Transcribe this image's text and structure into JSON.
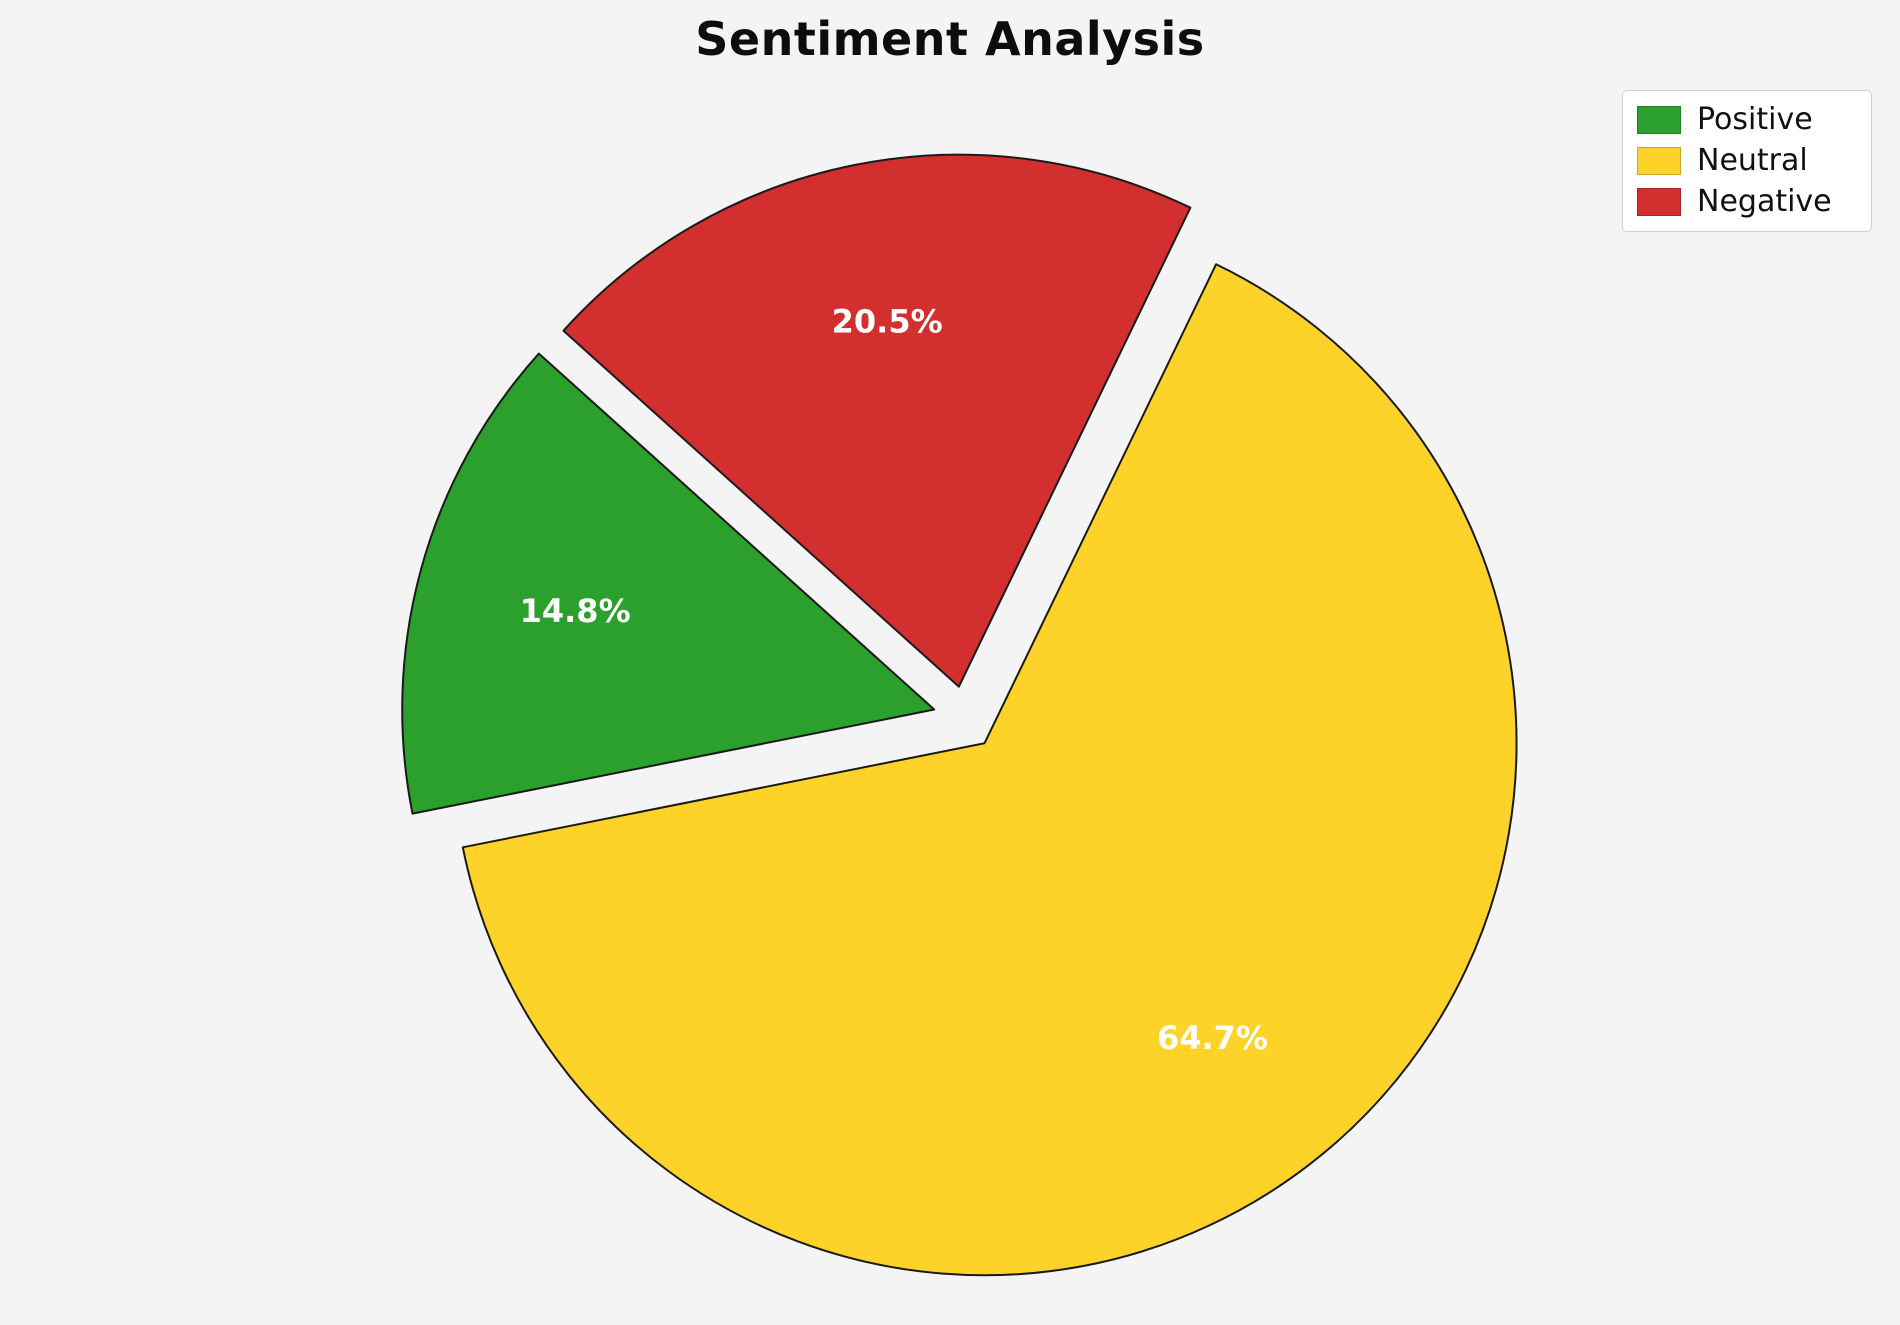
{
  "chart_data": {
    "type": "pie",
    "title": "Sentiment Analysis",
    "slices": [
      {
        "label": "Positive",
        "value": 14.8,
        "pct_label": "14.8%",
        "color": "#2ca02c"
      },
      {
        "label": "Neutral",
        "value": 64.7,
        "pct_label": "64.7%",
        "color": "#fdd32a"
      },
      {
        "label": "Negative",
        "value": 20.5,
        "pct_label": "20.5%",
        "color": "#d32f2f"
      }
    ],
    "legend": {
      "position": "upper right",
      "labels": [
        "Positive",
        "Neutral",
        "Negative"
      ]
    },
    "layout": {
      "start_angle": 138,
      "counterclock": true,
      "explode": 0.06,
      "label_distance": 0.7,
      "edge_color": "#1a1a1a",
      "label_color": "#ffffff",
      "background": "#f4f4f5"
    }
  }
}
